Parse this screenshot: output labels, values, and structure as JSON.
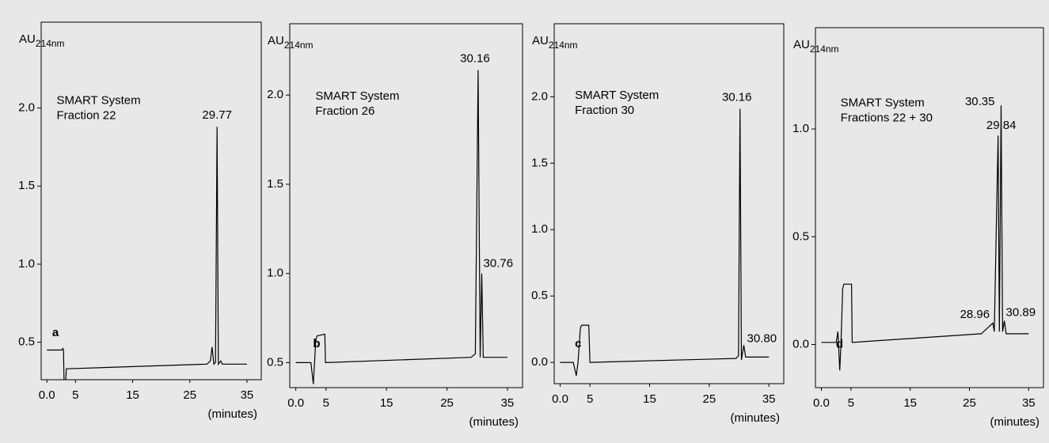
{
  "chart_data": [
    {
      "type": "line",
      "panel_label": "a",
      "y_label": "AU",
      "y_label_subscript": "214nm",
      "x_label": "(minutes)",
      "notes": [
        "SMART System",
        "Fraction 22"
      ],
      "peak_labels": [
        29.77
      ],
      "xlim": [
        -1,
        37.5
      ],
      "xticks": [
        {
          "value": 0,
          "label": "0.0"
        },
        5,
        15,
        25,
        35
      ],
      "ylim": [
        0.26,
        2.55
      ],
      "yticks": [
        0.5,
        {
          "value": 1,
          "label": "1.0"
        },
        1.5,
        {
          "value": 2,
          "label": "2.0"
        }
      ],
      "x": [
        0,
        2.6,
        2.8,
        2.9,
        3.0,
        3.3,
        3.4,
        28,
        28.6,
        28.9,
        29.2,
        29.5,
        29.77,
        30.0,
        30.2,
        30.4,
        30.7,
        31,
        35
      ],
      "series": [
        {
          "color": "#000000",
          "values": [
            0.45,
            0.45,
            0.46,
            0.45,
            0.25,
            0.25,
            0.33,
            0.36,
            0.38,
            0.47,
            0.36,
            0.37,
            1.88,
            0.36,
            0.37,
            0.38,
            0.36,
            0.36,
            0.36
          ]
        }
      ]
    },
    {
      "type": "line",
      "panel_label": "b",
      "y_label": "AU",
      "y_label_subscript": "214nm",
      "x_label": "(minutes)",
      "notes": [
        "SMART System",
        "Fraction 26"
      ],
      "peak_labels": [
        30.16,
        30.76
      ],
      "xlim": [
        -1,
        37.5
      ],
      "xticks": [
        {
          "value": 0,
          "label": "0.0"
        },
        5,
        15,
        25,
        35
      ],
      "ylim": [
        0.36,
        2.4
      ],
      "yticks": [
        0.5,
        {
          "value": 1,
          "label": "1.0"
        },
        1.5,
        {
          "value": 2,
          "label": "2.0"
        }
      ],
      "x": [
        0,
        2.5,
        2.9,
        3.1,
        3.3,
        3.5,
        4.8,
        4.9,
        29,
        29.7,
        30.16,
        30.5,
        30.76,
        31.0,
        35
      ],
      "series": [
        {
          "color": "#000000",
          "values": [
            0.5,
            0.5,
            0.38,
            0.5,
            0.62,
            0.65,
            0.66,
            0.5,
            0.53,
            0.55,
            2.14,
            0.53,
            1.0,
            0.53,
            0.53
          ]
        }
      ]
    },
    {
      "type": "line",
      "panel_label": "c",
      "y_label": "AU",
      "y_label_subscript": "214nm",
      "x_label": "(minutes)",
      "notes": [
        "SMART System",
        "Fraction 30"
      ],
      "peak_labels": [
        30.16,
        {
          "value": 30.8,
          "label": "30.80"
        }
      ],
      "xlim": [
        -1,
        37.5
      ],
      "xticks": [
        {
          "value": 0,
          "label": "0.0"
        },
        5,
        15,
        25,
        35
      ],
      "ylim": [
        -0.16,
        2.55
      ],
      "yticks": [
        {
          "value": 0,
          "label": "0.0"
        },
        0.5,
        {
          "value": 1,
          "label": "1.0"
        },
        1.5,
        {
          "value": 2,
          "label": "2.0"
        }
      ],
      "x": [
        0,
        2.2,
        2.7,
        3.0,
        3.4,
        3.6,
        4.8,
        5.0,
        29.5,
        29.9,
        30.16,
        30.4,
        30.8,
        31.1,
        35
      ],
      "series": [
        {
          "color": "#000000",
          "values": [
            0.0,
            0.0,
            -0.1,
            0.0,
            0.26,
            0.28,
            0.28,
            0.0,
            0.03,
            0.05,
            1.91,
            0.02,
            0.13,
            0.04,
            0.04
          ]
        }
      ]
    },
    {
      "type": "line",
      "panel_label": "d",
      "y_label": "AU",
      "y_label_subscript": "214nm",
      "x_label": "(minutes)",
      "notes": [
        "SMART System",
        "Fractions 22 + 30"
      ],
      "peak_labels": [
        29.84,
        30.35,
        28.96,
        30.89
      ],
      "xlim": [
        -1,
        37.5
      ],
      "xticks": [
        {
          "value": 0,
          "label": "0.0"
        },
        5,
        15,
        25,
        35
      ],
      "ylim": [
        -0.2,
        1.47
      ],
      "yticks": [
        {
          "value": 0,
          "label": "0.0"
        },
        0.5,
        {
          "value": 1,
          "label": "1.0"
        }
      ],
      "x": [
        0,
        2.5,
        2.8,
        3.1,
        3.3,
        3.6,
        3.8,
        5.1,
        5.2,
        27,
        28.96,
        29.2,
        29.84,
        30.05,
        30.35,
        30.6,
        30.89,
        31.2,
        35
      ],
      "series": [
        {
          "color": "#000000",
          "values": [
            0.01,
            0.01,
            0.06,
            -0.12,
            0.0,
            0.26,
            0.28,
            0.28,
            0.01,
            0.05,
            0.1,
            0.06,
            0.97,
            0.06,
            1.11,
            0.06,
            0.11,
            0.05,
            0.05
          ]
        }
      ]
    }
  ]
}
